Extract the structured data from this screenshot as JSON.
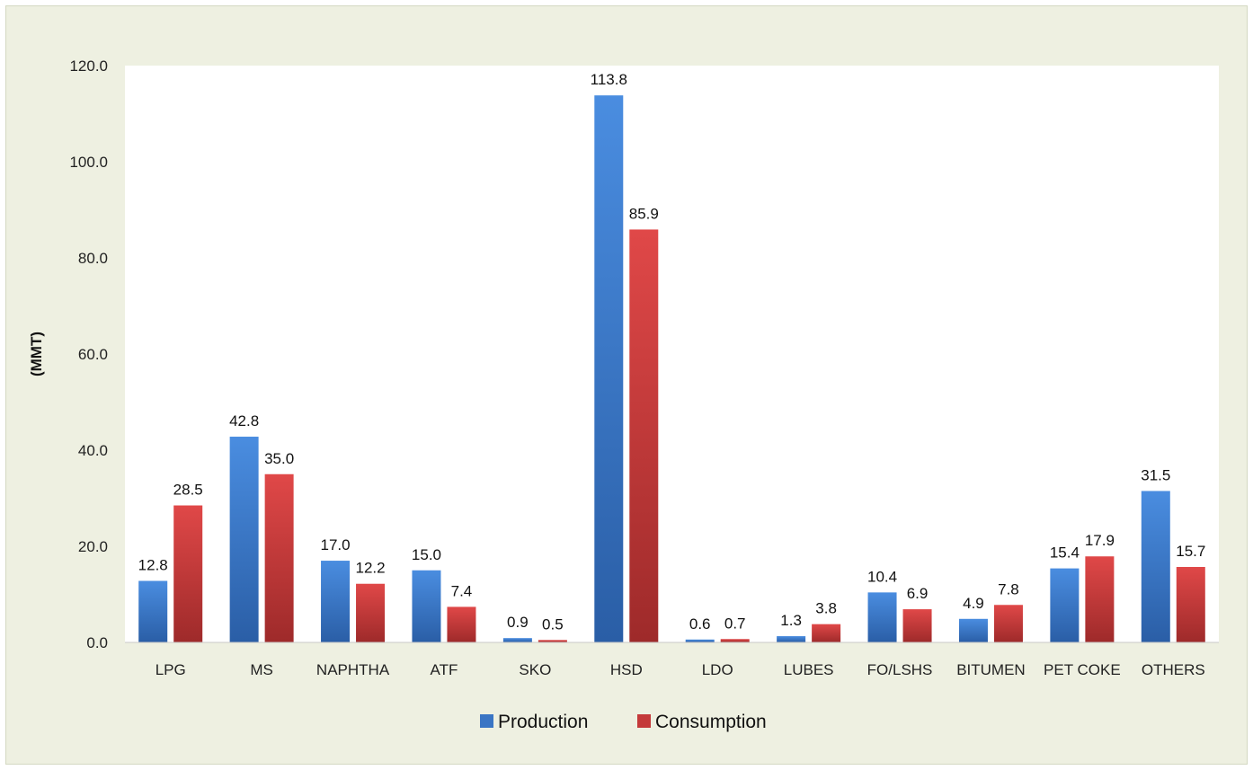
{
  "chart_data": {
    "type": "bar",
    "title": "",
    "xlabel": "",
    "ylabel": "(MMT)",
    "ylim": [
      0,
      120
    ],
    "yticks": [
      "0.0",
      "20.0",
      "40.0",
      "60.0",
      "80.0",
      "100.0",
      "120.0"
    ],
    "grid": false,
    "legend_position": "bottom",
    "categories": [
      "LPG",
      "MS",
      "NAPHTHA",
      "ATF",
      "SKO",
      "HSD",
      "LDO",
      "LUBES",
      "FO/LSHS",
      "BITUMEN",
      "PET COKE",
      "OTHERS"
    ],
    "series": [
      {
        "name": "Production",
        "color": "#3a75c4",
        "values": [
          12.8,
          42.8,
          17.0,
          15.0,
          0.9,
          113.8,
          0.6,
          1.3,
          10.4,
          4.9,
          15.4,
          31.5
        ]
      },
      {
        "name": "Consumption",
        "color": "#c43a3a",
        "values": [
          28.5,
          35.0,
          12.2,
          7.4,
          0.5,
          85.9,
          0.7,
          3.8,
          6.9,
          7.8,
          17.9,
          15.7
        ]
      }
    ]
  }
}
